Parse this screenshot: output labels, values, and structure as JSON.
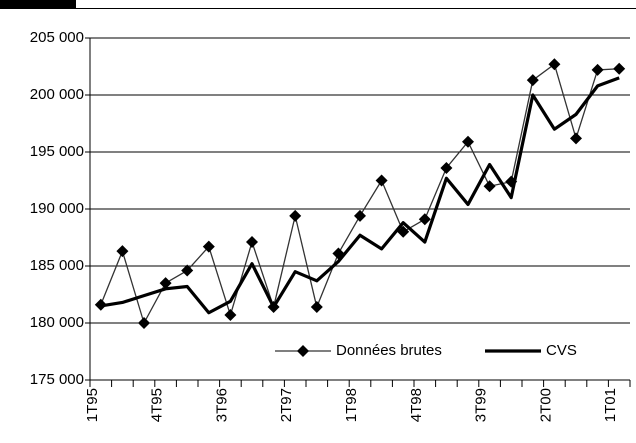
{
  "chart_data": {
    "type": "line",
    "categories": [
      "1T95",
      null,
      null,
      "4T95",
      null,
      null,
      "3T96",
      null,
      null,
      "2T97",
      null,
      null,
      "1T98",
      null,
      null,
      "4T98",
      null,
      null,
      "3T99",
      null,
      null,
      "2T00",
      null,
      null,
      "1T01"
    ],
    "series": [
      {
        "name": "Données brutes",
        "color": "#333333",
        "marker": "diamond",
        "values": [
          181600,
          186300,
          180000,
          183500,
          184600,
          186700,
          180700,
          187100,
          181400,
          189400,
          181400,
          186100,
          189400,
          192500,
          188000,
          189100,
          193600,
          195900,
          192000,
          192400,
          201300,
          202700,
          196200,
          202200,
          202300
        ]
      },
      {
        "name": "CVS",
        "color": "#000000",
        "values": [
          181500,
          181800,
          182400,
          183000,
          183200,
          180900,
          181900,
          185200,
          181400,
          184500,
          183700,
          185400,
          187700,
          186500,
          188800,
          187100,
          192700,
          190400,
          193900,
          191000,
          200000,
          197000,
          198300,
          200800,
          201500
        ]
      }
    ],
    "ylim": [
      175000,
      205000
    ],
    "yticks": [
      {
        "value": 175000,
        "label": "175 000"
      },
      {
        "value": 180000,
        "label": "180 000"
      },
      {
        "value": 185000,
        "label": "185 000"
      },
      {
        "value": 190000,
        "label": "190 000"
      },
      {
        "value": 195000,
        "label": "195 000"
      },
      {
        "value": 200000,
        "label": "200 000"
      },
      {
        "value": 205000,
        "label": "205 000"
      }
    ],
    "grid": true
  }
}
